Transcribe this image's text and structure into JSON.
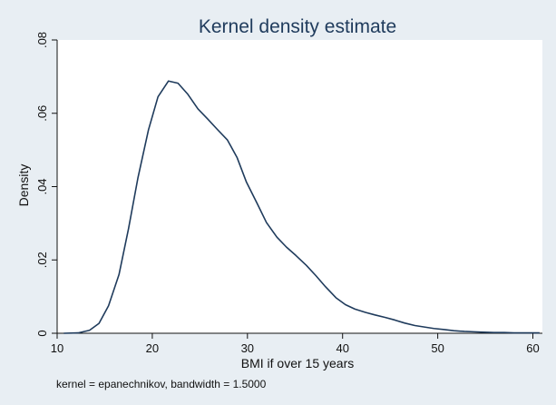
{
  "chart_data": {
    "type": "line",
    "title": "Kernel density estimate",
    "xlabel": "BMI if over 15 years",
    "ylabel": "Density",
    "note": "kernel = epanechnikov, bandwidth = 1.5000",
    "xlim": [
      10,
      61
    ],
    "ylim": [
      0,
      0.08
    ],
    "xticks": [
      10,
      20,
      30,
      40,
      50,
      60
    ],
    "yticks": [
      0,
      0.02,
      0.04,
      0.06,
      0.08
    ],
    "ytick_labels": [
      "0",
      ".02",
      ".04",
      ".06",
      ".08"
    ],
    "grid": false,
    "series": [
      {
        "x": [
          10.7,
          12.2,
          13.4,
          14.4,
          15.4,
          16.5,
          17.5,
          18.5,
          19.6,
          20.6,
          21.7,
          22.7,
          23.7,
          24.8,
          25.8,
          26.8,
          27.9,
          28.9,
          29.9,
          31.0,
          32.0,
          33.1,
          34.1,
          35.1,
          36.2,
          37.2,
          38.2,
          39.3,
          40.3,
          41.3,
          42.4,
          43.4,
          44.5,
          45.5,
          46.5,
          47.6,
          48.6,
          49.6,
          50.7,
          51.7,
          52.8,
          53.8,
          54.8,
          55.9,
          57.0,
          58.0,
          59.0,
          60.0,
          60.7
        ],
        "y": [
          0.0,
          0.0001,
          0.0008,
          0.0027,
          0.0075,
          0.016,
          0.0285,
          0.0425,
          0.0555,
          0.0645,
          0.0688,
          0.0682,
          0.0653,
          0.0612,
          0.0585,
          0.0557,
          0.0527,
          0.048,
          0.0412,
          0.0355,
          0.0302,
          0.0262,
          0.0235,
          0.0212,
          0.0185,
          0.0157,
          0.0127,
          0.0097,
          0.0078,
          0.0066,
          0.0057,
          0.005,
          0.0043,
          0.0036,
          0.0028,
          0.0021,
          0.0017,
          0.0013,
          0.001,
          0.0007,
          0.0005,
          0.0004,
          0.0003,
          0.0002,
          0.0002,
          0.0001,
          0.0001,
          0.0001,
          0.0001
        ],
        "color": "#1f3b5c"
      }
    ],
    "colors": {
      "background": "#e8eef3",
      "plot_background": "#ffffff",
      "line": "#1f3b5c",
      "title": "#1f3b5c"
    }
  }
}
